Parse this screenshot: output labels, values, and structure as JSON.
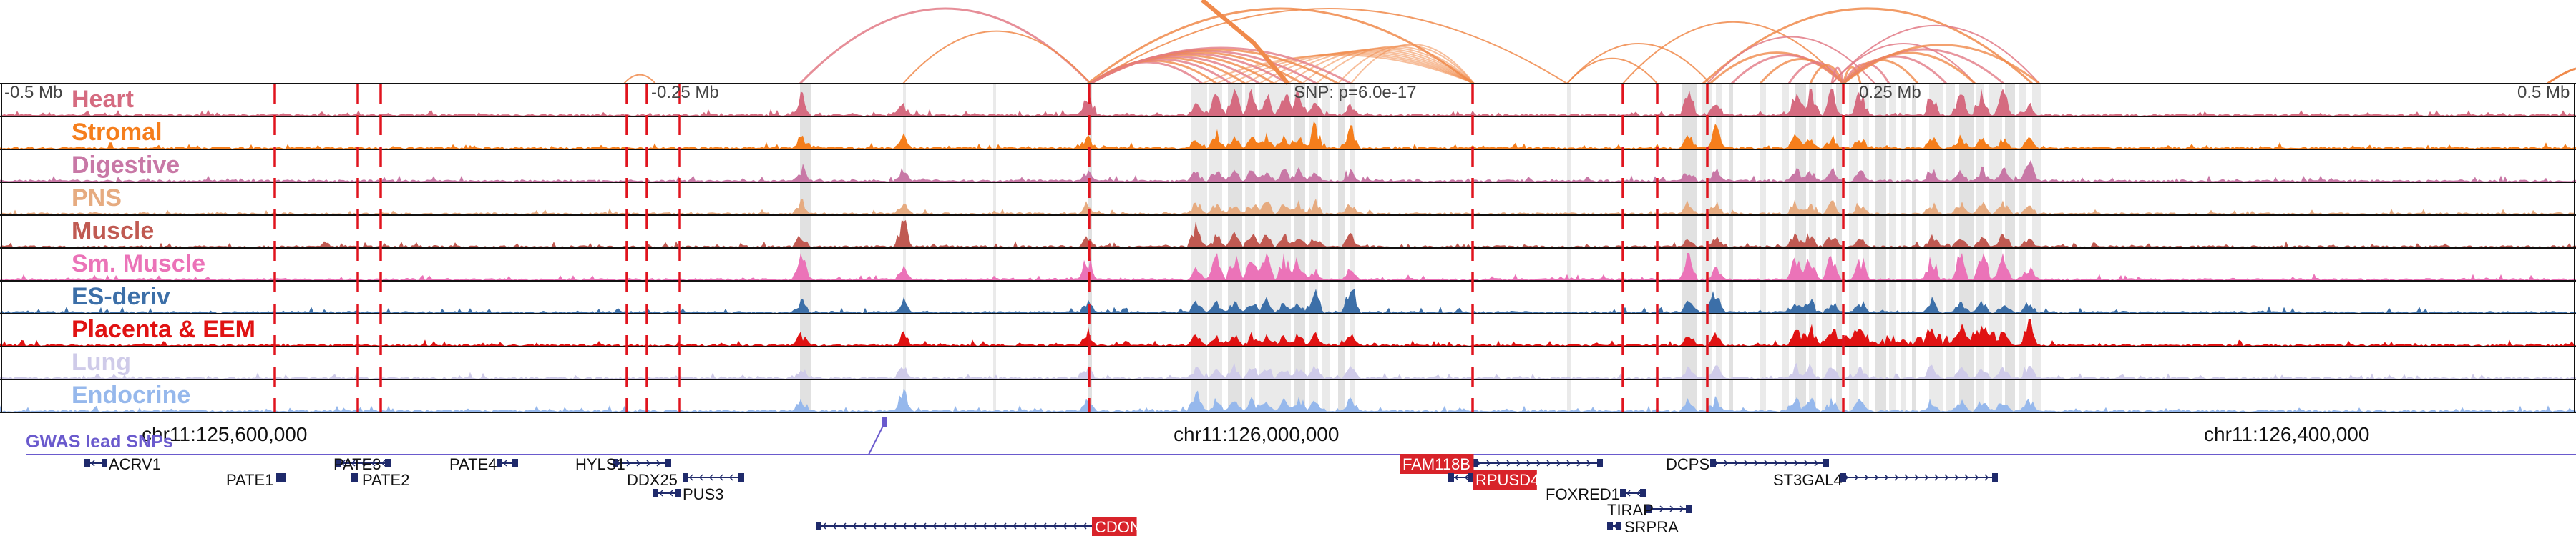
{
  "scale_labels": [
    "-0.5 Mb",
    "-0.25 Mb",
    "0.25 Mb",
    "0.5 Mb"
  ],
  "snp_label": "SNP: p=6.0e-17",
  "tracks": [
    {
      "name": "Heart",
      "color": "#d56b80"
    },
    {
      "name": "Stromal",
      "color": "#f57e1c"
    },
    {
      "name": "Digestive",
      "color": "#c878a6"
    },
    {
      "name": "PNS",
      "color": "#e6ab80"
    },
    {
      "name": "Muscle",
      "color": "#c05a52"
    },
    {
      "name": "Sm. Muscle",
      "color": "#eb73b8"
    },
    {
      "name": "ES-deriv",
      "color": "#3c6fa8"
    },
    {
      "name": "Placenta & EEM",
      "color": "#e01212"
    },
    {
      "name": "Lung",
      "color": "#cfcbe9"
    },
    {
      "name": "Endocrine",
      "color": "#96b8ec"
    }
  ],
  "coordinates": [
    "chr11:125,600,000",
    "chr11:126,000,000",
    "chr11:126,400,000"
  ],
  "gwas_label": "GWAS lead SNPs",
  "genes": [
    {
      "name": "ACRV1",
      "highlight": false
    },
    {
      "name": "PATE1",
      "highlight": false
    },
    {
      "name": "PATE3",
      "highlight": false
    },
    {
      "name": "PATE2",
      "highlight": false
    },
    {
      "name": "PATE4",
      "highlight": false
    },
    {
      "name": "HYLS1",
      "highlight": false
    },
    {
      "name": "DDX25",
      "highlight": false
    },
    {
      "name": "PUS3",
      "highlight": false
    },
    {
      "name": "CDON",
      "highlight": true
    },
    {
      "name": "FAM118B",
      "highlight": true
    },
    {
      "name": "RPUSD4",
      "highlight": true
    },
    {
      "name": "FOXRED1",
      "highlight": false
    },
    {
      "name": "TIRAP",
      "highlight": false
    },
    {
      "name": "SRPRA",
      "highlight": false
    },
    {
      "name": "DCPS",
      "highlight": false
    },
    {
      "name": "ST3GAL4",
      "highlight": false
    }
  ],
  "colors": {
    "arc": "#f08a4b",
    "arc_pink": "#e27a86",
    "gene": "#1f2a6b",
    "highlight_fill": "#d8232a",
    "snp": "#6a5acd",
    "dashed": "#e0141e",
    "stripe": "#c8c8c8"
  }
}
